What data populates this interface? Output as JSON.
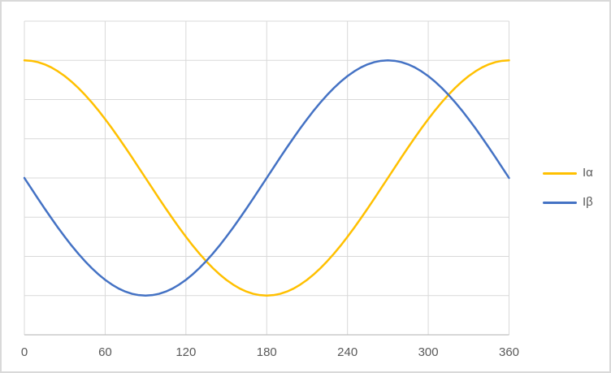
{
  "colors": {
    "grid": "#d9d9d9",
    "axis_line": "#bfbfbf",
    "tick_text": "#595959",
    "legend_text": "#595959",
    "frame_border": "#d9d9d9",
    "background": "#ffffff"
  },
  "chart_data": {
    "type": "line",
    "title": "",
    "xlabel": "",
    "ylabel": "",
    "xlim": [
      0,
      360
    ],
    "ylim": [
      -1.3333,
      1.3333
    ],
    "x_ticks": [
      0,
      60,
      120,
      180,
      240,
      300,
      360
    ],
    "x_tick_labels": [
      "0",
      "60",
      "120",
      "180",
      "240",
      "300",
      "360"
    ],
    "y_divisions": 8,
    "y_tick_labels_visible": false,
    "grid": true,
    "legend_position": "right",
    "x": [
      0,
      5,
      10,
      15,
      20,
      25,
      30,
      35,
      40,
      45,
      50,
      55,
      60,
      65,
      70,
      75,
      80,
      85,
      90,
      95,
      100,
      105,
      110,
      115,
      120,
      125,
      130,
      135,
      140,
      145,
      150,
      155,
      160,
      165,
      170,
      175,
      180,
      185,
      190,
      195,
      200,
      205,
      210,
      215,
      220,
      225,
      230,
      235,
      240,
      245,
      250,
      255,
      260,
      265,
      270,
      275,
      280,
      285,
      290,
      295,
      300,
      305,
      310,
      315,
      320,
      325,
      330,
      335,
      340,
      345,
      350,
      355,
      360
    ],
    "series": [
      {
        "name": "Iα",
        "color": "#FFC000",
        "formula": "cos(theta)",
        "values": [
          1,
          0.996,
          0.985,
          0.966,
          0.94,
          0.906,
          0.866,
          0.819,
          0.766,
          0.707,
          0.643,
          0.574,
          0.5,
          0.423,
          0.342,
          0.259,
          0.174,
          0.087,
          0,
          -0.087,
          -0.174,
          -0.259,
          -0.342,
          -0.423,
          -0.5,
          -0.574,
          -0.643,
          -0.707,
          -0.766,
          -0.819,
          -0.866,
          -0.906,
          -0.94,
          -0.966,
          -0.985,
          -0.996,
          -1,
          -0.996,
          -0.985,
          -0.966,
          -0.94,
          -0.906,
          -0.866,
          -0.819,
          -0.766,
          -0.707,
          -0.643,
          -0.574,
          -0.5,
          -0.423,
          -0.342,
          -0.259,
          -0.174,
          -0.087,
          0,
          0.087,
          0.174,
          0.259,
          0.342,
          0.423,
          0.5,
          0.574,
          0.643,
          0.707,
          0.766,
          0.819,
          0.866,
          0.906,
          0.94,
          0.966,
          0.985,
          0.996,
          1
        ]
      },
      {
        "name": "Iβ",
        "color": "#4472C4",
        "formula": "-sin(theta)",
        "values": [
          0,
          -0.087,
          -0.174,
          -0.259,
          -0.342,
          -0.423,
          -0.5,
          -0.574,
          -0.643,
          -0.707,
          -0.766,
          -0.819,
          -0.866,
          -0.906,
          -0.94,
          -0.966,
          -0.985,
          -0.996,
          -1,
          -0.996,
          -0.985,
          -0.966,
          -0.94,
          -0.906,
          -0.866,
          -0.819,
          -0.766,
          -0.707,
          -0.643,
          -0.574,
          -0.5,
          -0.423,
          -0.342,
          -0.259,
          -0.174,
          -0.087,
          0,
          0.087,
          0.174,
          0.259,
          0.342,
          0.423,
          0.5,
          0.574,
          0.643,
          0.707,
          0.766,
          0.819,
          0.866,
          0.906,
          0.94,
          0.966,
          0.985,
          0.996,
          1,
          0.996,
          0.985,
          0.966,
          0.94,
          0.906,
          0.866,
          0.819,
          0.766,
          0.707,
          0.643,
          0.574,
          0.5,
          0.423,
          0.342,
          0.259,
          0.174,
          0.087,
          0
        ]
      }
    ]
  }
}
